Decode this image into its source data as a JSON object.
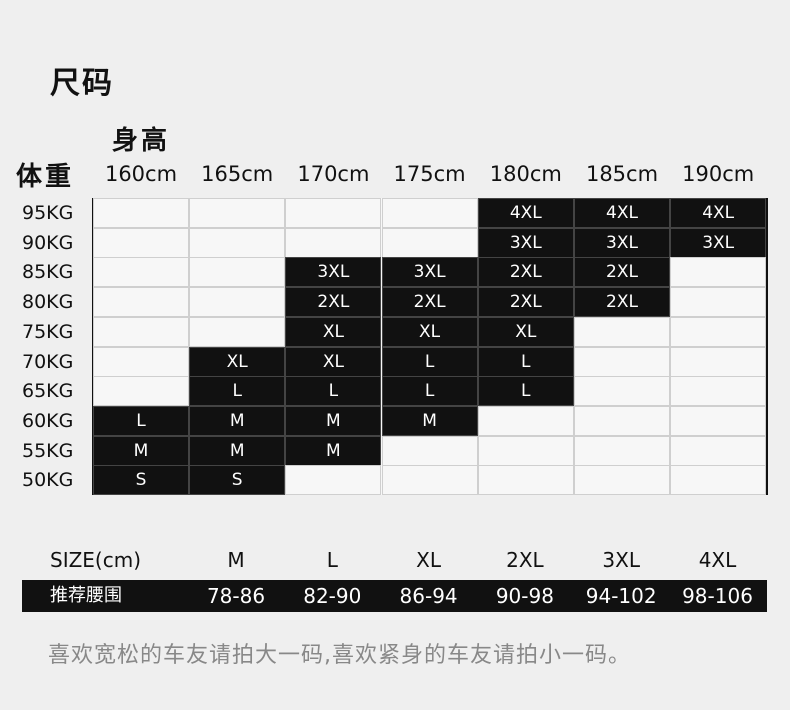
{
  "title": "尺码",
  "height_label": "身高",
  "weight_label": "体重",
  "heights": [
    "160cm",
    "165cm",
    "170cm",
    "175cm",
    "180cm",
    "185cm",
    "190cm"
  ],
  "weights": [
    "95KG",
    "90KG",
    "85KG",
    "80KG",
    "75KG",
    "70KG",
    "65KG",
    "60KG",
    "55KG",
    "50KG"
  ],
  "grid": [
    [
      "",
      "",
      "",
      "",
      "4XL",
      "4XL",
      "4XL"
    ],
    [
      "",
      "",
      "",
      "",
      "3XL",
      "3XL",
      "3XL"
    ],
    [
      "",
      "",
      "3XL",
      "3XL",
      "2XL",
      "2XL",
      ""
    ],
    [
      "",
      "",
      "2XL",
      "2XL",
      "2XL",
      "2XL",
      ""
    ],
    [
      "",
      "",
      "XL",
      "XL",
      "XL",
      "",
      ""
    ],
    [
      "",
      "XL",
      "XL",
      "L",
      "L",
      "",
      ""
    ],
    [
      "",
      "L",
      "L",
      "L",
      "L",
      "",
      ""
    ],
    [
      "L",
      "M",
      "M",
      "M",
      "",
      "",
      ""
    ],
    [
      "M",
      "M",
      "M",
      "",
      "",
      "",
      ""
    ],
    [
      "S",
      "S",
      "",
      "",
      "",
      "",
      ""
    ]
  ],
  "grid_filled": [
    [
      false,
      false,
      false,
      false,
      true,
      true,
      true
    ],
    [
      false,
      false,
      false,
      false,
      true,
      true,
      true
    ],
    [
      false,
      false,
      true,
      true,
      true,
      true,
      false
    ],
    [
      false,
      false,
      true,
      true,
      true,
      true,
      false
    ],
    [
      false,
      false,
      true,
      true,
      true,
      false,
      false
    ],
    [
      false,
      true,
      true,
      true,
      true,
      false,
      false
    ],
    [
      false,
      true,
      true,
      true,
      true,
      false,
      false
    ],
    [
      true,
      true,
      true,
      true,
      false,
      false,
      false
    ],
    [
      true,
      true,
      true,
      false,
      false,
      false,
      false
    ],
    [
      true,
      true,
      false,
      false,
      false,
      false,
      false
    ]
  ],
  "waist_table": {
    "header_label": "SIZE(cm)",
    "sizes": [
      "M",
      "L",
      "XL",
      "2XL",
      "3XL",
      "4XL"
    ],
    "row_label": "推荐腰围",
    "values": [
      "78-86",
      "82-90",
      "86-94",
      "90-98",
      "94-102",
      "98-106"
    ]
  },
  "note": "喜欢宽松的车友请拍大一码,喜欢紧身的车友请拍小一码。",
  "colors": {
    "background": "#efefef",
    "filled_cell": "#111111",
    "empty_cell": "#f7f7f7",
    "note_text": "#888888"
  }
}
